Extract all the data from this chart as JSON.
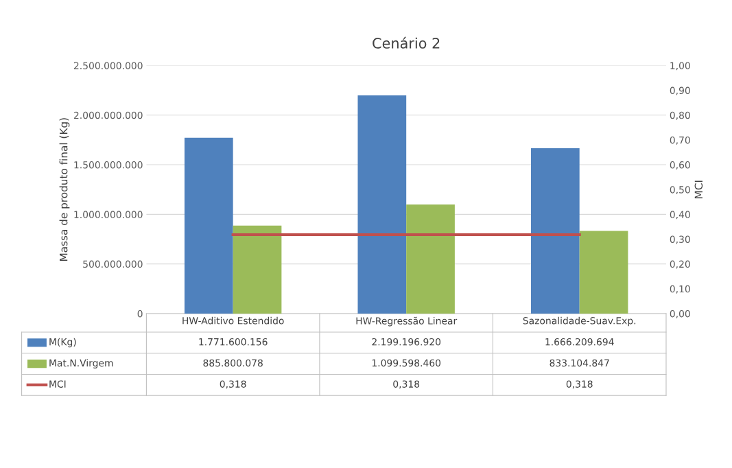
{
  "chart_data": {
    "type": "bar",
    "title": "Cenário 2",
    "ylabel": "Massa de produto final (Kg)",
    "y2label": "MCI",
    "categories": [
      "HW-Aditivo Estendido",
      "HW-Regressão Linear",
      "Sazonalidade-Suav.Exp."
    ],
    "series": [
      {
        "name": "M(Kg)",
        "color": "#4f81bd",
        "values": [
          1771600156,
          2199196920,
          1666209694
        ],
        "value_labels": [
          "1.771.600.156",
          "2.199.196.920",
          "1.666.209.694"
        ]
      },
      {
        "name": "Mat.N.Virgem",
        "color": "#9bbb59",
        "values": [
          885800078,
          1099598460,
          833104847
        ],
        "value_labels": [
          "885.800.078",
          "1.099.598.460",
          "833.104.847"
        ]
      },
      {
        "name": "MCI",
        "type": "line",
        "axis": "y2",
        "color": "#c0504d",
        "values": [
          0.318,
          0.318,
          0.318
        ],
        "value_labels": [
          "0,318",
          "0,318",
          "0,318"
        ]
      }
    ],
    "ylim": [
      0,
      2500000000
    ],
    "yticks": [
      {
        "value": 0,
        "label": "0"
      },
      {
        "value": 500000000,
        "label": "500.000.000"
      },
      {
        "value": 1000000000,
        "label": "1.000.000.000"
      },
      {
        "value": 1500000000,
        "label": "1.500.000.000"
      },
      {
        "value": 2000000000,
        "label": "2.000.000.000"
      },
      {
        "value": 2500000000,
        "label": "2.500.000.000"
      }
    ],
    "y2lim": [
      0,
      1
    ],
    "y2ticks": [
      {
        "value": 0,
        "label": "0,00"
      },
      {
        "value": 0.1,
        "label": "0,10"
      },
      {
        "value": 0.2,
        "label": "0,20"
      },
      {
        "value": 0.3,
        "label": "0,30"
      },
      {
        "value": 0.4,
        "label": "0,40"
      },
      {
        "value": 0.5,
        "label": "0,50"
      },
      {
        "value": 0.6,
        "label": "0,60"
      },
      {
        "value": 0.7,
        "label": "0,70"
      },
      {
        "value": 0.8,
        "label": "0,80"
      },
      {
        "value": 0.9,
        "label": "0,90"
      },
      {
        "value": 1.0,
        "label": "1,00"
      }
    ],
    "grid": "y",
    "legend": "bottom"
  }
}
